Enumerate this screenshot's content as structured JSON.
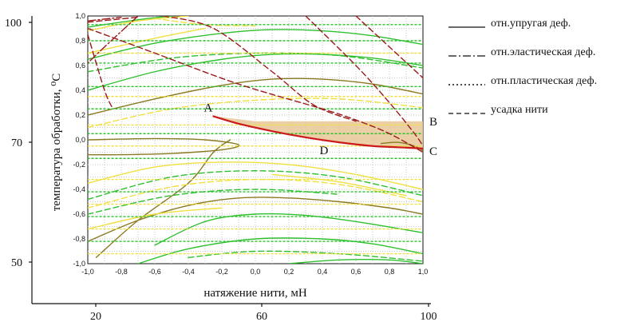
{
  "chart_data": {
    "type": "line",
    "xlabel": "натяжение нити, мН",
    "ylabel": "температура обработки, ⁰С",
    "outer_x_ticks": [
      "20",
      "60",
      "100"
    ],
    "outer_y_ticks": [
      "100",
      "70",
      "50"
    ],
    "inner_x_ticks": [
      "-1,0",
      "-0,8",
      "-0,6",
      "-0,4",
      "-0,2",
      "0,0",
      "0,2",
      "0,4",
      "0,6",
      "0,8",
      "1,0"
    ],
    "inner_y_ticks": [
      "1,0",
      "0,8",
      "0,6",
      "0,4",
      "0,2",
      "0,0",
      "-0,2",
      "-0,4",
      "-0,6",
      "-0,8",
      "-1,0"
    ],
    "xlim": [
      -1,
      1
    ],
    "ylim": [
      -1,
      1
    ],
    "legend": [
      {
        "label": "отн.упругая деф.",
        "style": "solid"
      },
      {
        "label": "отн.эластическая деф.",
        "style": "dashdot"
      },
      {
        "label": "отн.пластическая деф.",
        "style": "dotted"
      },
      {
        "label": "усадка нити",
        "style": "dashed"
      }
    ],
    "points": [
      {
        "label": "A",
        "x": -0.25,
        "y": 0.19
      },
      {
        "label": "B",
        "x": 1.0,
        "y": 0.15
      },
      {
        "label": "C",
        "x": 1.0,
        "y": -0.07
      },
      {
        "label": "D",
        "x": 0.45,
        "y": -0.05
      }
    ],
    "region": {
      "upper": [
        [
          -0.25,
          0.19
        ],
        [
          0.0,
          0.15
        ],
        [
          0.3,
          0.15
        ],
        [
          0.6,
          0.15
        ],
        [
          1.0,
          0.15
        ]
      ],
      "lower": [
        [
          -0.25,
          0.19
        ],
        [
          -0.1,
          0.13
        ],
        [
          0.1,
          0.07
        ],
        [
          0.3,
          0.02
        ],
        [
          0.5,
          -0.02
        ],
        [
          0.7,
          -0.05
        ],
        [
          0.85,
          -0.06
        ],
        [
          1.0,
          -0.07
        ]
      ]
    },
    "series": [
      {
        "color": "#2fc02f",
        "style": "solid",
        "points": [
          [
            -1.0,
            0.65
          ],
          [
            -0.6,
            0.78
          ],
          [
            -0.2,
            0.86
          ],
          [
            0.1,
            0.89
          ],
          [
            0.4,
            0.88
          ],
          [
            0.7,
            0.84
          ],
          [
            1.0,
            0.77
          ]
        ]
      },
      {
        "color": "#2fc02f",
        "style": "solid",
        "points": [
          [
            -1.0,
            0.4
          ],
          [
            -0.6,
            0.55
          ],
          [
            -0.2,
            0.65
          ],
          [
            0.1,
            0.69
          ],
          [
            0.4,
            0.69
          ],
          [
            0.7,
            0.66
          ],
          [
            1.0,
            0.6
          ]
        ]
      },
      {
        "color": "#2fc02f",
        "style": "solid",
        "points": [
          [
            -1.0,
            0.91
          ],
          [
            -0.7,
            0.97
          ],
          [
            -0.5,
            1.0
          ]
        ]
      },
      {
        "color": "#2fc02f",
        "style": "solid",
        "points": [
          [
            -0.6,
            -0.85
          ],
          [
            -0.3,
            -0.66
          ],
          [
            0.0,
            -0.6
          ],
          [
            0.3,
            -0.61
          ],
          [
            0.6,
            -0.66
          ],
          [
            1.0,
            -0.75
          ]
        ]
      },
      {
        "color": "#2fc02f",
        "style": "solid",
        "points": [
          [
            -0.7,
            -1.0
          ],
          [
            -0.4,
            -0.88
          ],
          [
            0.0,
            -0.8
          ],
          [
            0.4,
            -0.8
          ],
          [
            0.7,
            -0.84
          ],
          [
            1.0,
            -0.92
          ]
        ]
      },
      {
        "color": "#2fc02f",
        "style": "solid",
        "points": [
          [
            0.2,
            -1.0
          ],
          [
            0.5,
            -0.97
          ],
          [
            0.8,
            -0.97
          ],
          [
            1.0,
            -1.0
          ]
        ]
      },
      {
        "color": "#8b7a20",
        "style": "solid",
        "points": [
          [
            -1.0,
            0.2
          ],
          [
            -0.6,
            0.33
          ],
          [
            -0.2,
            0.44
          ],
          [
            0.1,
            0.49
          ],
          [
            0.4,
            0.49
          ],
          [
            0.7,
            0.45
          ],
          [
            1.0,
            0.37
          ]
        ]
      },
      {
        "color": "#8b7a20",
        "style": "solid",
        "points": [
          [
            -1.0,
            0.0
          ],
          [
            -0.6,
            0.01
          ],
          [
            -0.3,
            0.0
          ],
          [
            -0.1,
            -0.04
          ],
          [
            -0.2,
            -0.08
          ],
          [
            -0.5,
            -0.11
          ],
          [
            -0.8,
            -0.12
          ],
          [
            -1.0,
            -0.12
          ]
        ]
      },
      {
        "color": "#8b7a20",
        "style": "solid",
        "points": [
          [
            -0.95,
            -0.95
          ],
          [
            -0.7,
            -0.65
          ],
          [
            -0.4,
            -0.35
          ],
          [
            -0.25,
            -0.1
          ],
          [
            -0.15,
            0.0
          ]
        ]
      },
      {
        "color": "#8b7a20",
        "style": "solid",
        "points": [
          [
            -1.0,
            -0.82
          ],
          [
            -0.7,
            -0.65
          ],
          [
            -0.4,
            -0.53
          ],
          [
            -0.1,
            -0.47
          ],
          [
            0.2,
            -0.47
          ],
          [
            0.5,
            -0.5
          ],
          [
            0.8,
            -0.55
          ],
          [
            1.0,
            -0.6
          ]
        ]
      },
      {
        "color": "#8b7a20",
        "style": "solid",
        "points": [
          [
            0.75,
            -0.03
          ],
          [
            0.85,
            -0.02
          ],
          [
            0.95,
            -0.05
          ],
          [
            1.0,
            -0.09
          ]
        ]
      },
      {
        "color": "#f0e040",
        "style": "solid",
        "points": [
          [
            -1.0,
            0.88
          ],
          [
            -0.7,
            0.96
          ],
          [
            -0.4,
            1.0
          ]
        ]
      },
      {
        "color": "#f0e040",
        "style": "solid",
        "points": [
          [
            -1.0,
            0.7
          ],
          [
            -0.6,
            0.82
          ],
          [
            -0.3,
            0.9
          ]
        ]
      },
      {
        "color": "#f0e040",
        "style": "solid",
        "points": [
          [
            -1.0,
            -0.35
          ],
          [
            -0.6,
            -0.22
          ],
          [
            -0.2,
            -0.18
          ],
          [
            0.2,
            -0.2
          ],
          [
            0.6,
            -0.28
          ],
          [
            1.0,
            -0.4
          ]
        ]
      },
      {
        "color": "#f0e040",
        "style": "solid",
        "points": [
          [
            -1.0,
            -0.72
          ],
          [
            -0.6,
            -0.6
          ],
          [
            -0.2,
            -0.55
          ]
        ]
      },
      {
        "color": "#f0e040",
        "style": "solid",
        "points": [
          [
            0.1,
            -0.28
          ],
          [
            0.5,
            -0.34
          ],
          [
            0.9,
            -0.45
          ]
        ]
      },
      {
        "color": "#2fc02f",
        "style": "dashed",
        "points": [
          [
            -1.0,
            -0.48
          ],
          [
            -0.5,
            -0.3
          ],
          [
            0.0,
            -0.25
          ],
          [
            0.5,
            -0.3
          ],
          [
            1.0,
            -0.45
          ]
        ]
      },
      {
        "color": "#2fc02f",
        "style": "dashed",
        "points": [
          [
            -1.0,
            0.55
          ],
          [
            -0.5,
            0.66
          ],
          [
            0.0,
            0.7
          ],
          [
            0.5,
            0.68
          ],
          [
            1.0,
            0.58
          ]
        ]
      },
      {
        "color": "#2fc02f",
        "style": "dashed",
        "points": [
          [
            -0.4,
            -0.95
          ],
          [
            0.0,
            -0.9
          ],
          [
            0.5,
            -0.92
          ],
          [
            1.0,
            -0.98
          ]
        ]
      },
      {
        "color": "#2fc02f",
        "style": "dashed",
        "points": [
          [
            -1.0,
            -0.6
          ],
          [
            -0.5,
            -0.45
          ],
          [
            0.0,
            -0.4
          ],
          [
            0.5,
            -0.44
          ]
        ]
      },
      {
        "color": "#f0e040",
        "style": "dashed",
        "points": [
          [
            -1.0,
            -0.55
          ],
          [
            -0.5,
            -0.38
          ],
          [
            0.0,
            -0.32
          ],
          [
            0.5,
            -0.36
          ],
          [
            1.0,
            -0.5
          ]
        ]
      },
      {
        "color": "#f0e040",
        "style": "dashed",
        "points": [
          [
            -1.0,
            0.1
          ],
          [
            -0.5,
            0.25
          ],
          [
            0.0,
            0.32
          ],
          [
            0.5,
            0.33
          ],
          [
            1.0,
            0.26
          ]
        ]
      },
      {
        "color": "#f0e040",
        "style": "dashed",
        "points": [
          [
            -0.6,
            0.98
          ],
          [
            -0.3,
            0.93
          ],
          [
            0.0,
            0.92
          ]
        ]
      },
      {
        "color": "#2fc02f",
        "style": "dotted",
        "points": [
          [
            -1.0,
            0.93
          ],
          [
            1.0,
            0.93
          ]
        ]
      },
      {
        "color": "#2fc02f",
        "style": "dotted",
        "points": [
          [
            -1.0,
            0.8
          ],
          [
            1.0,
            0.8
          ]
        ]
      },
      {
        "color": "#2fc02f",
        "style": "dotted",
        "points": [
          [
            -1.0,
            0.62
          ],
          [
            1.0,
            0.62
          ]
        ]
      },
      {
        "color": "#2fc02f",
        "style": "dotted",
        "points": [
          [
            -1.0,
            0.43
          ],
          [
            1.0,
            0.43
          ]
        ]
      },
      {
        "color": "#2fc02f",
        "style": "dotted",
        "points": [
          [
            -1.0,
            0.25
          ],
          [
            1.0,
            0.25
          ]
        ]
      },
      {
        "color": "#2fc02f",
        "style": "dotted",
        "points": [
          [
            -1.0,
            0.05
          ],
          [
            1.0,
            0.05
          ]
        ]
      },
      {
        "color": "#2fc02f",
        "style": "dotted",
        "points": [
          [
            -1.0,
            -0.15
          ],
          [
            1.0,
            -0.15
          ]
        ]
      },
      {
        "color": "#2fc02f",
        "style": "dotted",
        "points": [
          [
            -1.0,
            -0.42
          ],
          [
            1.0,
            -0.42
          ]
        ]
      },
      {
        "color": "#2fc02f",
        "style": "dotted",
        "points": [
          [
            -1.0,
            -0.62
          ],
          [
            1.0,
            -0.62
          ]
        ]
      },
      {
        "color": "#2fc02f",
        "style": "dotted",
        "points": [
          [
            -1.0,
            -0.82
          ],
          [
            1.0,
            -0.82
          ]
        ]
      },
      {
        "color": "#f0e040",
        "style": "dotted",
        "points": [
          [
            -1.0,
            0.7
          ],
          [
            1.0,
            0.7
          ]
        ]
      },
      {
        "color": "#f0e040",
        "style": "dotted",
        "points": [
          [
            -1.0,
            0.35
          ],
          [
            1.0,
            0.35
          ]
        ]
      },
      {
        "color": "#f0e040",
        "style": "dotted",
        "points": [
          [
            -1.0,
            0.12
          ],
          [
            1.0,
            0.12
          ]
        ]
      },
      {
        "color": "#f0e040",
        "style": "dotted",
        "points": [
          [
            -1.0,
            -0.05
          ],
          [
            1.0,
            -0.05
          ]
        ]
      },
      {
        "color": "#f0e040",
        "style": "dotted",
        "points": [
          [
            -1.0,
            -0.32
          ],
          [
            1.0,
            -0.32
          ]
        ]
      },
      {
        "color": "#f0e040",
        "style": "dotted",
        "points": [
          [
            -1.0,
            -0.52
          ],
          [
            1.0,
            -0.52
          ]
        ]
      },
      {
        "color": "#f0e040",
        "style": "dotted",
        "points": [
          [
            -1.0,
            -0.72
          ],
          [
            1.0,
            -0.72
          ]
        ]
      },
      {
        "color": "#f0e040",
        "style": "dotted",
        "points": [
          [
            -1.0,
            -0.92
          ],
          [
            1.0,
            -0.92
          ]
        ]
      },
      {
        "color": "#9a1a1a",
        "style": "dashed",
        "points": [
          [
            -1.0,
            0.95
          ],
          [
            -0.7,
            0.99
          ]
        ]
      },
      {
        "color": "#9a1a1a",
        "style": "dashed",
        "points": [
          [
            -1.0,
            0.9
          ],
          [
            -0.6,
            0.7
          ],
          [
            -0.1,
            0.45
          ],
          [
            0.4,
            0.25
          ],
          [
            0.6,
            0.16
          ],
          [
            0.8,
            0.05
          ],
          [
            1.0,
            -0.1
          ]
        ]
      },
      {
        "color": "#9a1a1a",
        "style": "dashed",
        "points": [
          [
            -0.55,
            1.0
          ],
          [
            -0.25,
            0.9
          ],
          [
            0.1,
            0.55
          ],
          [
            0.35,
            0.28
          ],
          [
            0.6,
            0.15
          ]
        ]
      },
      {
        "color": "#9a1a1a",
        "style": "dashed",
        "points": [
          [
            0.3,
            1.0
          ],
          [
            0.6,
            0.6
          ],
          [
            0.8,
            0.3
          ],
          [
            0.95,
            0.05
          ],
          [
            1.0,
            -0.05
          ]
        ]
      },
      {
        "color": "#9a1a1a",
        "style": "dashed",
        "points": [
          [
            0.6,
            1.0
          ],
          [
            0.8,
            0.75
          ],
          [
            1.0,
            0.5
          ]
        ]
      },
      {
        "color": "#9a1a1a",
        "style": "dashed",
        "points": [
          [
            -1.0,
            0.85
          ],
          [
            -0.9,
            0.4
          ],
          [
            -0.85,
            0.25
          ]
        ]
      },
      {
        "color": "#9a1a1a",
        "style": "dashdot",
        "points": [
          [
            -0.7,
            1.0
          ],
          [
            -0.9,
            0.75
          ],
          [
            -1.0,
            0.62
          ]
        ]
      },
      {
        "color": "#9a1a1a",
        "style": "dashdot",
        "points": [
          [
            -1.0,
            0.96
          ],
          [
            -0.8,
            0.99
          ]
        ]
      },
      {
        "color": "#cc1a1a",
        "style": "solid",
        "width": 2.2,
        "points": [
          [
            -0.25,
            0.19
          ],
          [
            -0.1,
            0.13
          ],
          [
            0.1,
            0.07
          ],
          [
            0.3,
            0.02
          ],
          [
            0.5,
            -0.02
          ],
          [
            0.7,
            -0.05
          ],
          [
            0.85,
            -0.06
          ],
          [
            1.0,
            -0.07
          ]
        ]
      }
    ]
  }
}
